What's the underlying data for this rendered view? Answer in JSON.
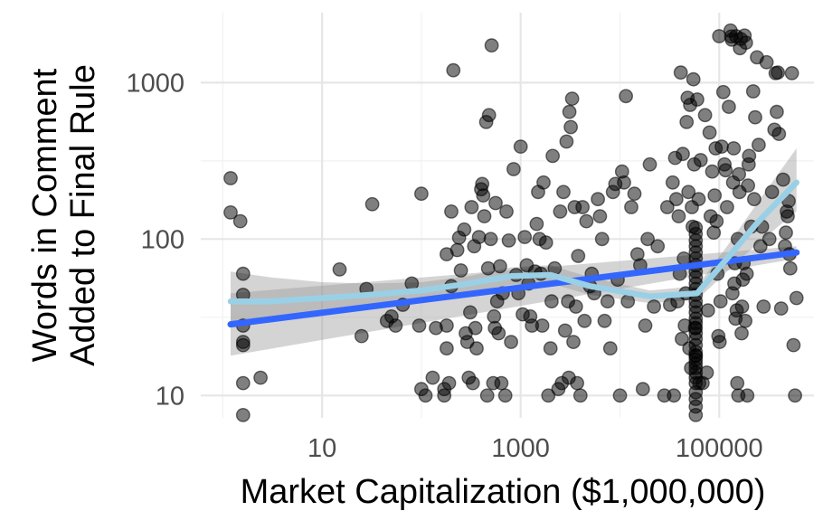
{
  "chart_data": {
    "type": "scatter",
    "title": "",
    "xlabel": "Market Capitalization ($1,000,000)",
    "ylabel_lines": [
      "Words in Comment",
      "Added to Final Rule"
    ],
    "x_scale": "log10",
    "y_scale": "log10",
    "xlim": [
      0.6,
      900000
    ],
    "ylim": [
      7.2,
      2800
    ],
    "x_ticks": [
      {
        "value": 10,
        "label": "10"
      },
      {
        "value": 1000,
        "label": "1000"
      },
      {
        "value": 100000,
        "label": "100000"
      }
    ],
    "y_ticks": [
      {
        "value": 10,
        "label": "10"
      },
      {
        "value": 100,
        "label": "100"
      },
      {
        "value": 1000,
        "label": "1000"
      }
    ],
    "grid": true,
    "legend": "none",
    "colors": {
      "points": "#000000",
      "linear_fit": "#3366ff",
      "smooth_fit": "#9ad0e6",
      "ribbon": "#999999"
    },
    "points": [
      [
        1.2,
        245
      ],
      [
        1.2,
        148
      ],
      [
        1.5,
        130
      ],
      [
        1.6,
        60
      ],
      [
        1.6,
        44
      ],
      [
        1.6,
        28
      ],
      [
        1.6,
        22
      ],
      [
        1.6,
        21
      ],
      [
        1.6,
        12
      ],
      [
        1.6,
        7.5
      ],
      [
        2.4,
        13
      ],
      [
        15,
        64
      ],
      [
        25,
        24
      ],
      [
        28,
        48
      ],
      [
        32,
        167
      ],
      [
        45,
        30
      ],
      [
        50,
        32
      ],
      [
        55,
        28
      ],
      [
        65,
        38
      ],
      [
        80,
        52
      ],
      [
        95,
        28
      ],
      [
        100,
        11
      ],
      [
        100,
        195
      ],
      [
        110,
        10
      ],
      [
        130,
        13
      ],
      [
        140,
        27
      ],
      [
        170,
        10
      ],
      [
        170,
        11
      ],
      [
        180,
        80
      ],
      [
        180,
        28
      ],
      [
        180,
        20
      ],
      [
        190,
        12
      ],
      [
        200,
        50
      ],
      [
        200,
        150
      ],
      [
        210,
        1200
      ],
      [
        230,
        85
      ],
      [
        240,
        102
      ],
      [
        250,
        63
      ],
      [
        270,
        115
      ],
      [
        280,
        25
      ],
      [
        290,
        22
      ],
      [
        300,
        13
      ],
      [
        310,
        34
      ],
      [
        320,
        160
      ],
      [
        330,
        12
      ],
      [
        340,
        90
      ],
      [
        350,
        27
      ],
      [
        360,
        20
      ],
      [
        380,
        103
      ],
      [
        400,
        208
      ],
      [
        410,
        225
      ],
      [
        420,
        190
      ],
      [
        430,
        140
      ],
      [
        450,
        560
      ],
      [
        460,
        10
      ],
      [
        470,
        65
      ],
      [
        480,
        620
      ],
      [
        500,
        100
      ],
      [
        510,
        1730
      ],
      [
        530,
        12
      ],
      [
        540,
        32
      ],
      [
        550,
        27
      ],
      [
        560,
        170
      ],
      [
        580,
        40
      ],
      [
        600,
        25
      ],
      [
        620,
        67
      ],
      [
        640,
        12
      ],
      [
        660,
        45
      ],
      [
        700,
        10
      ],
      [
        720,
        150
      ],
      [
        760,
        98
      ],
      [
        800,
        22
      ],
      [
        850,
        280
      ],
      [
        900,
        59
      ],
      [
        950,
        45
      ],
      [
        1000,
        390
      ],
      [
        1050,
        33
      ],
      [
        1100,
        103
      ],
      [
        1150,
        68
      ],
      [
        1200,
        52
      ],
      [
        1250,
        32
      ],
      [
        1300,
        28
      ],
      [
        1400,
        62
      ],
      [
        1450,
        125
      ],
      [
        1500,
        200
      ],
      [
        1550,
        100
      ],
      [
        1600,
        60
      ],
      [
        1650,
        28
      ],
      [
        1700,
        230
      ],
      [
        1800,
        95
      ],
      [
        1900,
        10
      ],
      [
        2000,
        20
      ],
      [
        2050,
        40
      ],
      [
        2100,
        340
      ],
      [
        2200,
        65
      ],
      [
        2400,
        11
      ],
      [
        2500,
        150
      ],
      [
        2600,
        12
      ],
      [
        2700,
        200
      ],
      [
        2800,
        26
      ],
      [
        2900,
        420
      ],
      [
        3000,
        40
      ],
      [
        3050,
        13
      ],
      [
        3100,
        650
      ],
      [
        3200,
        520
      ],
      [
        3300,
        790
      ],
      [
        3400,
        22
      ],
      [
        3500,
        160
      ],
      [
        3600,
        37
      ],
      [
        3700,
        12
      ],
      [
        3800,
        78
      ],
      [
        4000,
        10
      ],
      [
        4200,
        160
      ],
      [
        4400,
        30
      ],
      [
        4600,
        130
      ],
      [
        5000,
        50
      ],
      [
        5200,
        60
      ],
      [
        5500,
        45
      ],
      [
        6000,
        180
      ],
      [
        6300,
        140
      ],
      [
        6600,
        100
      ],
      [
        7000,
        30
      ],
      [
        7500,
        40
      ],
      [
        8000,
        20
      ],
      [
        8500,
        200
      ],
      [
        9000,
        225
      ],
      [
        9500,
        55
      ],
      [
        10000,
        10
      ],
      [
        10500,
        270
      ],
      [
        11000,
        230
      ],
      [
        11500,
        820
      ],
      [
        12000,
        40
      ],
      [
        13000,
        160
      ],
      [
        14000,
        195
      ],
      [
        15000,
        80
      ],
      [
        16000,
        68
      ],
      [
        17000,
        11
      ],
      [
        18000,
        28
      ],
      [
        19000,
        100
      ],
      [
        20000,
        300
      ],
      [
        22000,
        37
      ],
      [
        24000,
        90
      ],
      [
        28000,
        10
      ],
      [
        30000,
        160
      ],
      [
        32000,
        38
      ],
      [
        34000,
        230
      ],
      [
        35000,
        10
      ],
      [
        36000,
        330
      ],
      [
        37000,
        180
      ],
      [
        38000,
        40
      ],
      [
        39000,
        140
      ],
      [
        40000,
        60
      ],
      [
        41000,
        1160
      ],
      [
        42000,
        23
      ],
      [
        43000,
        350
      ],
      [
        44000,
        75
      ],
      [
        45000,
        28
      ],
      [
        46000,
        45
      ],
      [
        47000,
        560
      ],
      [
        48000,
        800
      ],
      [
        49000,
        200
      ],
      [
        50000,
        20
      ],
      [
        51000,
        720
      ],
      [
        52000,
        15
      ],
      [
        53000,
        160
      ],
      [
        54000,
        120
      ],
      [
        55000,
        1050
      ],
      [
        56000,
        300
      ],
      [
        57000,
        27
      ],
      [
        58000,
        18
      ],
      [
        58000,
        7.5
      ],
      [
        58000,
        8.5
      ],
      [
        58000,
        9.5
      ],
      [
        58000,
        10.5
      ],
      [
        58000,
        12
      ],
      [
        58000,
        13
      ],
      [
        58000,
        14
      ],
      [
        58000,
        15
      ],
      [
        58000,
        16
      ],
      [
        58000,
        17
      ],
      [
        58000,
        18
      ],
      [
        58000,
        19
      ],
      [
        58000,
        21
      ],
      [
        58000,
        23
      ],
      [
        58000,
        25
      ],
      [
        58000,
        27
      ],
      [
        58000,
        29
      ],
      [
        58000,
        31
      ],
      [
        58000,
        34
      ],
      [
        58000,
        37
      ],
      [
        58000,
        40
      ],
      [
        58000,
        44
      ],
      [
        58000,
        48
      ],
      [
        58000,
        52
      ],
      [
        58000,
        57
      ],
      [
        58000,
        62
      ],
      [
        58000,
        68
      ],
      [
        58000,
        75
      ],
      [
        58000,
        82
      ],
      [
        58000,
        90
      ],
      [
        58000,
        98
      ],
      [
        58000,
        108
      ],
      [
        58000,
        118
      ],
      [
        60000,
        780
      ],
      [
        62000,
        180
      ],
      [
        63000,
        12
      ],
      [
        65000,
        320
      ],
      [
        68000,
        12
      ],
      [
        72000,
        620
      ],
      [
        75000,
        14
      ],
      [
        77000,
        35
      ],
      [
        80000,
        480
      ],
      [
        82000,
        140
      ],
      [
        85000,
        270
      ],
      [
        88000,
        110
      ],
      [
        90000,
        190
      ],
      [
        92000,
        380
      ],
      [
        94000,
        130
      ],
      [
        96000,
        60
      ],
      [
        98000,
        24
      ],
      [
        100000,
        1980
      ],
      [
        101000,
        22
      ],
      [
        103000,
        40
      ],
      [
        106000,
        390
      ],
      [
        110000,
        870
      ],
      [
        113000,
        300
      ],
      [
        116000,
        275
      ],
      [
        120000,
        160
      ],
      [
        125000,
        700
      ],
      [
        130000,
        2150
      ],
      [
        132000,
        1970
      ],
      [
        134000,
        1880
      ],
      [
        136000,
        45
      ],
      [
        138000,
        230
      ],
      [
        140000,
        380
      ],
      [
        142000,
        52
      ],
      [
        144000,
        70
      ],
      [
        146000,
        31
      ],
      [
        148000,
        1980
      ],
      [
        150000,
        35
      ],
      [
        152000,
        12
      ],
      [
        154000,
        100
      ],
      [
        156000,
        10
      ],
      [
        158000,
        260
      ],
      [
        160000,
        200
      ],
      [
        162000,
        1660
      ],
      [
        165000,
        1900
      ],
      [
        168000,
        25
      ],
      [
        170000,
        37
      ],
      [
        173000,
        55
      ],
      [
        176000,
        70
      ],
      [
        180000,
        2000
      ],
      [
        183000,
        30
      ],
      [
        186000,
        1800
      ],
      [
        189000,
        60
      ],
      [
        192000,
        10
      ],
      [
        195000,
        220
      ],
      [
        198000,
        300
      ],
      [
        200000,
        340
      ],
      [
        210000,
        120
      ],
      [
        220000,
        880
      ],
      [
        225000,
        180
      ],
      [
        230000,
        600
      ],
      [
        240000,
        1450
      ],
      [
        250000,
        400
      ],
      [
        260000,
        90
      ],
      [
        270000,
        120
      ],
      [
        280000,
        37
      ],
      [
        300000,
        1350
      ],
      [
        320000,
        100
      ],
      [
        340000,
        200
      ],
      [
        360000,
        500
      ],
      [
        370000,
        1150
      ],
      [
        380000,
        650
      ],
      [
        390000,
        1160
      ],
      [
        400000,
        470
      ],
      [
        420000,
        36
      ],
      [
        440000,
        240
      ],
      [
        460000,
        90
      ],
      [
        470000,
        110
      ],
      [
        480000,
        150
      ],
      [
        490000,
        140
      ],
      [
        500000,
        175
      ],
      [
        510000,
        80
      ],
      [
        520000,
        65
      ],
      [
        540000,
        1150
      ],
      [
        560000,
        21
      ],
      [
        580000,
        10
      ],
      [
        600000,
        42
      ]
    ],
    "linear_fit": {
      "x": [
        1.2,
        600000
      ],
      "y": [
        28.5,
        82
      ],
      "band_lower": [
        18,
        75
      ],
      "band_upper": [
        45,
        90
      ]
    },
    "smooth_fit": {
      "x": [
        1.2,
        3,
        10,
        30,
        100,
        300,
        800,
        2000,
        5000,
        20000,
        60000,
        120000,
        250000,
        600000
      ],
      "y": [
        40,
        40,
        42,
        44,
        47,
        52,
        58,
        59,
        50,
        43,
        45,
        75,
        130,
        230
      ],
      "band_lower": [
        28,
        30,
        34,
        37,
        42,
        46,
        51,
        52,
        44,
        39,
        41,
        62,
        95,
        150
      ],
      "band_upper": [
        62,
        57,
        53,
        52,
        53,
        58,
        66,
        68,
        57,
        47,
        50,
        90,
        175,
        380
      ]
    }
  }
}
